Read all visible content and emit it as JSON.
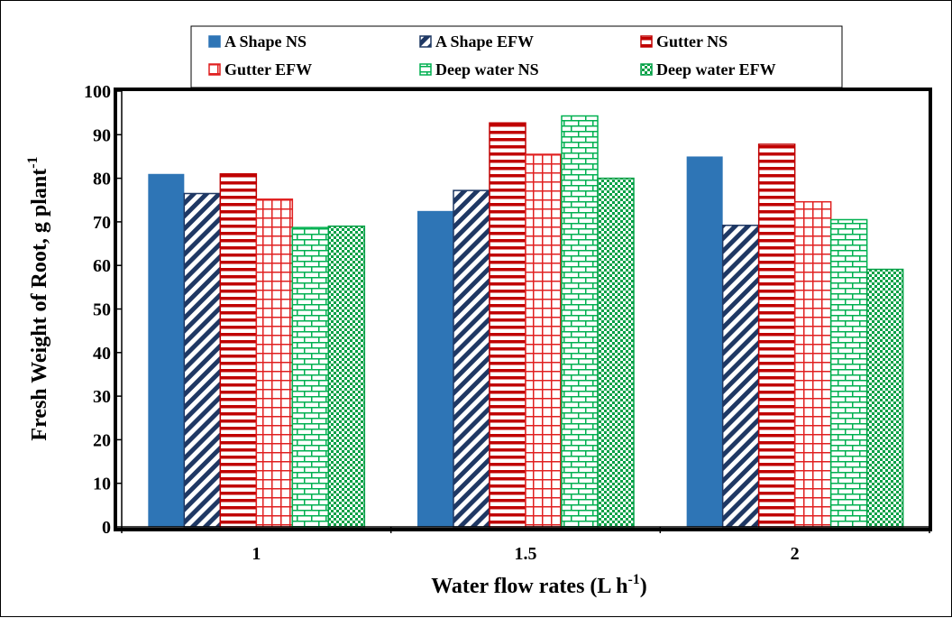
{
  "chart_data": {
    "type": "bar",
    "categories": [
      "1",
      "1.5",
      "2"
    ],
    "series": [
      {
        "name": "A Shape NS",
        "values": [
          81,
          72.5,
          85
        ],
        "color": "#2E75B6",
        "pattern": "solid"
      },
      {
        "name": "A Shape EFW",
        "values": [
          76.5,
          77.2,
          69.2
        ],
        "color": "#1F3864",
        "pattern": "diagonal-stripes"
      },
      {
        "name": "Gutter NS",
        "values": [
          81,
          92.7,
          87.8
        ],
        "color": "#C00000",
        "pattern": "horizontal-stripes"
      },
      {
        "name": "Gutter EFW",
        "values": [
          75.2,
          85.5,
          74.6
        ],
        "color": "#E02020",
        "pattern": "grid"
      },
      {
        "name": "Deep water NS",
        "values": [
          68.7,
          94.3,
          70.5
        ],
        "color": "#00B050",
        "pattern": "brick"
      },
      {
        "name": "Deep water EFW",
        "values": [
          69,
          80,
          59.1
        ],
        "color": "#00A045",
        "pattern": "checker"
      }
    ],
    "ylim": [
      0,
      100
    ],
    "ytick_step": 10,
    "yticks": [
      "0",
      "10",
      "20",
      "30",
      "40",
      "50",
      "60",
      "70",
      "80",
      "90",
      "100"
    ],
    "ylabel": "Fresh Weight of Root, g plant",
    "ylabel_sup": "-1",
    "xlabel": "Water  flow rates (L h",
    "xlabel_sup": "-1",
    "xlabel_end": ")",
    "legend_position": "top",
    "grid": false
  }
}
